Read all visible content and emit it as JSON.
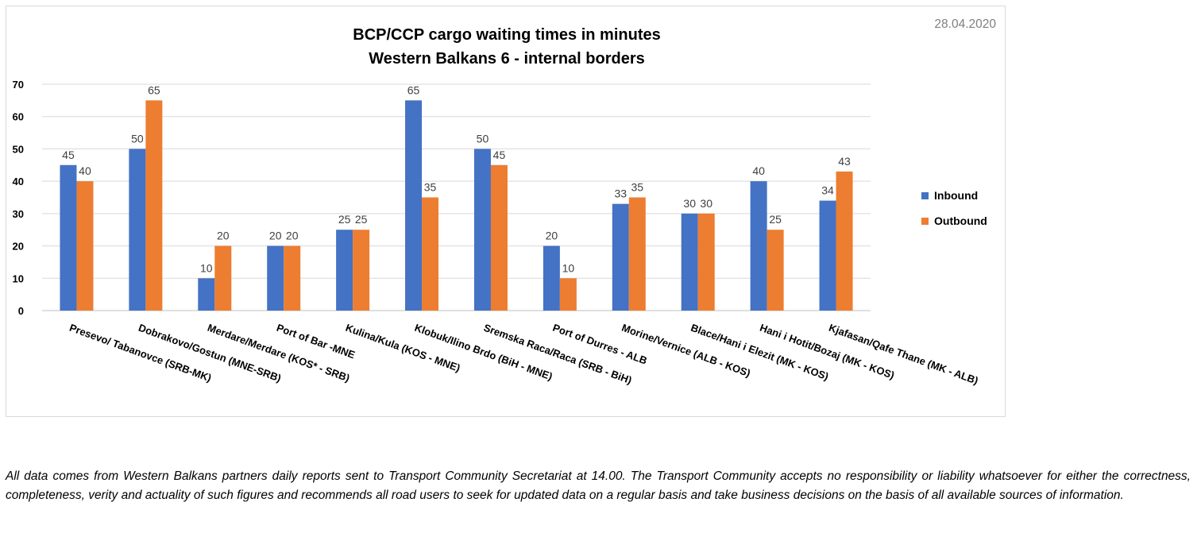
{
  "date": "28.04.2020",
  "footnote": "All data comes from Western Balkans partners daily reports sent to Transport Community Secretariat at 14.00. The Transport Community accepts no responsibility or liability whatsoever for either the correctness, completeness, verity and actuality of such figures and recommends all road users to seek for updated data on a regular basis and take business decisions on the basis of all available sources of information.",
  "colors": {
    "inbound": "#4472C4",
    "outbound": "#ED7D31",
    "grid": "#d9d9d9",
    "axis": "#bfbfbf"
  },
  "chart_data": {
    "type": "bar",
    "title": [
      "BCP/CCP cargo waiting times in minutes",
      "Western Balkans 6 - internal borders"
    ],
    "xlabel": "",
    "ylabel": "",
    "ylim": [
      0,
      70
    ],
    "yticks": [
      0,
      10,
      20,
      30,
      40,
      50,
      60,
      70
    ],
    "grid": true,
    "legend_position": "right",
    "categories": [
      "Presevo/ Tabanovce (SRB-MK)",
      "Dobrakovo/Gostun (MNE-SRB)",
      "Merdare/Merdare (KOS* - SRB)",
      "Port of Bar -MNE",
      "Kulina/Kula (KOS - MNE)",
      "Klobuk/Ilino Brdo (BiH - MNE)",
      "Sremska Raca/Raca (SRB - BiH)",
      "Port of Durres - ALB",
      "Morine/Vernice (ALB - KOS)",
      "Blace/Hani i Elezit (MK - KOS)",
      "Hani i Hotit/Bozaj (MK - KOS)",
      "Kjafasan/Qafe Thane (MK - ALB)"
    ],
    "series": [
      {
        "name": "Inbound",
        "values": [
          45,
          50,
          10,
          20,
          25,
          65,
          50,
          20,
          33,
          30,
          40,
          34
        ]
      },
      {
        "name": "Outbound",
        "values": [
          40,
          65,
          20,
          20,
          25,
          35,
          45,
          10,
          35,
          30,
          25,
          43
        ]
      }
    ]
  }
}
